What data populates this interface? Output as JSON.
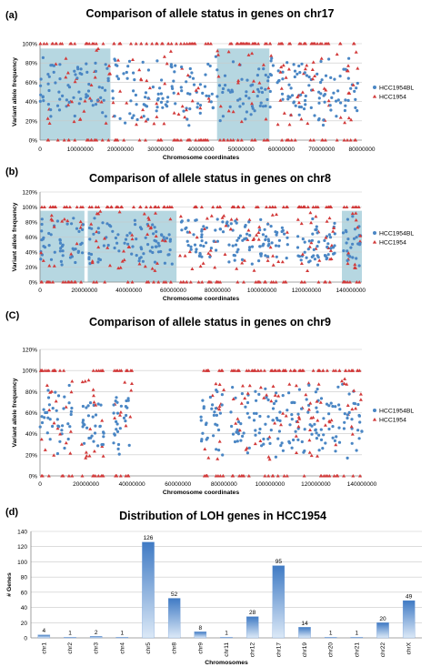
{
  "colors": {
    "bl": "#4a86c4",
    "tumor": "#d23a3a",
    "shade": "#a9d0dc",
    "bar": "#5b8fcf",
    "grid": "#c8c8c8"
  },
  "chart_data": [
    {
      "id": "chr17",
      "panel_label": "(a)",
      "type": "scatter",
      "title": "Comparison of allele status in genes on chr17",
      "xlabel": "Chromosome coordinates",
      "ylabel": "Variant allele frequency",
      "xlim": [
        0,
        80000000
      ],
      "ylim": [
        0,
        100
      ],
      "xticks": [
        "0",
        "10000000",
        "20000000",
        "30000000",
        "40000000",
        "50000000",
        "60000000",
        "70000000",
        "80000000"
      ],
      "yticks": [
        "0%",
        "20%",
        "40%",
        "60%",
        "80%",
        "100%"
      ],
      "legend": [
        "HCC1954BL",
        "HCC1954"
      ],
      "legend_position": "right",
      "shaded_regions": [
        [
          0,
          17500000
        ],
        [
          44000000,
          57000000
        ]
      ],
      "point_clusters": [
        [
          0,
          17500000
        ],
        [
          18000000,
          44000000
        ],
        [
          44000000,
          58000000
        ],
        [
          59000000,
          66000000
        ],
        [
          66000000,
          79000000
        ]
      ]
    },
    {
      "id": "chr8",
      "panel_label": "(b)",
      "type": "scatter",
      "title": "Comparison of allele status in genes on chr8",
      "xlabel": "Chromosome coordinates",
      "ylabel": "Variant allele frequency",
      "xlim": [
        0,
        145000000
      ],
      "ylim": [
        0,
        120
      ],
      "xticks": [
        "0",
        "20000000",
        "40000000",
        "60000000",
        "80000000",
        "100000000",
        "120000000",
        "140000000"
      ],
      "yticks": [
        "0%",
        "20%",
        "40%",
        "60%",
        "80%",
        "100%",
        "120%"
      ],
      "legend": [
        "HCC1954BL",
        "HCC1954"
      ],
      "legend_position": "right",
      "shaded_regions": [
        [
          0,
          20000000
        ],
        [
          21500000,
          61500000
        ],
        [
          136000000,
          145000000
        ]
      ],
      "point_clusters": [
        [
          0,
          19500000
        ],
        [
          22000000,
          60000000
        ],
        [
          63000000,
          90000000
        ],
        [
          90000000,
          112000000
        ],
        [
          116000000,
          126000000
        ],
        [
          128000000,
          133000000
        ],
        [
          136000000,
          144500000
        ]
      ]
    },
    {
      "id": "chr9",
      "panel_label": "(C)",
      "type": "scatter",
      "title": "Comparison of allele status in genes on chr9",
      "xlabel": "Chromosome coordinates",
      "ylabel": "Variant allele frequency",
      "xlim": [
        0,
        140000000
      ],
      "ylim": [
        0,
        120
      ],
      "xticks": [
        "0",
        "20000000",
        "40000000",
        "60000000",
        "80000000",
        "100000000",
        "120000000",
        "140000000"
      ],
      "yticks": [
        "0%",
        "20%",
        "40%",
        "60%",
        "80%",
        "100%",
        "120%"
      ],
      "legend": [
        "HCC1954BL",
        "HCC1954"
      ],
      "legend_position": "right",
      "shaded_regions": [],
      "point_clusters": [
        [
          0,
          14000000
        ],
        [
          18000000,
          28000000
        ],
        [
          32000000,
          40000000
        ],
        [
          70000000,
          80000000
        ],
        [
          83000000,
          98000000
        ],
        [
          98000000,
          112000000
        ],
        [
          112000000,
          124000000
        ],
        [
          124000000,
          140000000
        ]
      ]
    },
    {
      "id": "loh",
      "panel_label": "(d)",
      "type": "bar",
      "title": "Distribution of LOH genes in HCC1954",
      "xlabel": "Chromosomes",
      "ylabel": "# Genes",
      "ylim": [
        0,
        140
      ],
      "yticks": [
        "0",
        "20",
        "40",
        "60",
        "80",
        "100",
        "120",
        "140"
      ],
      "categories": [
        "chr1",
        "chr2",
        "chr3",
        "chr4",
        "chr5",
        "chr8",
        "chr9",
        "chr11",
        "chr12",
        "chr17",
        "chr19",
        "chr20",
        "chr21",
        "chr22",
        "chrX"
      ],
      "values": [
        4,
        1,
        2,
        1,
        126,
        52,
        8,
        1,
        28,
        95,
        14,
        1,
        1,
        20,
        49
      ]
    }
  ]
}
